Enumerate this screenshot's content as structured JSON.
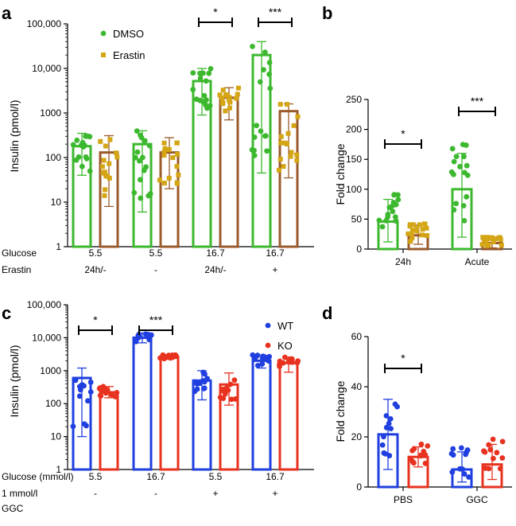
{
  "chart_data": [
    {
      "panel": "a",
      "type": "bar",
      "scale": "log",
      "ylabel": "Insulin (pmol/l)",
      "ylim": [
        1,
        100000
      ],
      "yticks": [
        1,
        10,
        100,
        1000,
        10000,
        100000
      ],
      "ytick_labels": [
        "1",
        "10",
        "100",
        "1000",
        "10,000",
        "100,000"
      ],
      "legend": {
        "position": "top",
        "entries": [
          "DMSO",
          "Erastin"
        ]
      },
      "row_labels": [
        "Glucose",
        "Erastin"
      ],
      "groups": [
        [
          "5.5",
          "24h/-"
        ],
        [
          "5.5",
          "-"
        ],
        [
          "16.7",
          "24h/-"
        ],
        [
          "16.7",
          "+"
        ]
      ],
      "series": [
        {
          "name": "DMSO",
          "color": "#3cb82e",
          "values": [
            180,
            200,
            5200,
            20000
          ],
          "err_low": [
            40,
            6,
            900,
            45
          ],
          "err_high": [
            350,
            400,
            10000,
            40000
          ]
        },
        {
          "name": "Erastin",
          "color": "#9a5a2b",
          "dot_color": "#d4a514",
          "values": [
            130,
            130,
            2200,
            1100
          ],
          "err_low": [
            8,
            20,
            700,
            35
          ],
          "err_high": [
            310,
            280,
            3700,
            1600
          ]
        }
      ],
      "significance": [
        {
          "group": 2,
          "label": "*"
        },
        {
          "group": 3,
          "label": "***"
        }
      ]
    },
    {
      "panel": "b",
      "type": "bar",
      "ylabel": "Fold change",
      "ylim": [
        0,
        250
      ],
      "yticks": [
        0,
        50,
        100,
        150,
        200,
        250
      ],
      "categories": [
        "24h",
        "Acute"
      ],
      "series": [
        {
          "name": "DMSO",
          "color": "#3cb82e",
          "values": [
            46,
            100
          ],
          "err_low": [
            12,
            20
          ],
          "err_high": [
            83,
            160
          ]
        },
        {
          "name": "Erastin",
          "color": "#9a5a2b",
          "dot_color": "#d4a514",
          "values": [
            23,
            10
          ],
          "err_low": [
            8,
            2
          ],
          "err_high": [
            40,
            18
          ]
        }
      ],
      "significance": [
        {
          "group": 0,
          "label": "*"
        },
        {
          "group": 1,
          "label": "***"
        }
      ]
    },
    {
      "panel": "c",
      "type": "bar",
      "scale": "log",
      "ylabel": "Insulin (pmol/l)",
      "ylim": [
        1,
        100000
      ],
      "yticks": [
        1,
        10,
        100,
        1000,
        10000,
        100000
      ],
      "ytick_labels": [
        "1",
        "10",
        "100",
        "1000",
        "10,000",
        "100,000"
      ],
      "legend": {
        "position": "top-right",
        "entries": [
          "WT",
          "KO"
        ]
      },
      "row_labels": [
        "Glucose (mmol/l)",
        "1 mmol/l",
        "GGC"
      ],
      "groups": [
        [
          "5.5",
          "-"
        ],
        [
          "16.7",
          "-"
        ],
        [
          "5.5",
          "+"
        ],
        [
          "16.7",
          "+"
        ]
      ],
      "series": [
        {
          "name": "WT",
          "color": "#1f3fe0",
          "values": [
            600,
            10000,
            500,
            2000
          ],
          "err_low": [
            10,
            7000,
            130,
            1200
          ],
          "err_high": [
            1200,
            14000,
            1000,
            3000
          ]
        },
        {
          "name": "KO",
          "color": "#e8321f",
          "values": [
            220,
            2600,
            380,
            1700
          ],
          "err_low": [
            150,
            2200,
            90,
            900
          ],
          "err_high": [
            330,
            3100,
            850,
            2600
          ]
        }
      ],
      "significance": [
        {
          "group": 0,
          "label": "*"
        },
        {
          "group": 1,
          "label": "***"
        }
      ]
    },
    {
      "panel": "d",
      "type": "bar",
      "ylabel": "Fold change",
      "ylim": [
        0,
        60
      ],
      "yticks": [
        0,
        20,
        40,
        60
      ],
      "categories": [
        "PBS",
        "GGC"
      ],
      "series": [
        {
          "name": "WT",
          "color": "#1f3fe0",
          "values": [
            21,
            7
          ],
          "err_low": [
            7,
            2
          ],
          "err_high": [
            35,
            14
          ]
        },
        {
          "name": "KO",
          "color": "#e8321f",
          "values": [
            12,
            9
          ],
          "err_low": [
            8,
            3
          ],
          "err_high": [
            16,
            17
          ]
        }
      ],
      "significance": [
        {
          "group": 0,
          "label": "*"
        }
      ]
    }
  ]
}
